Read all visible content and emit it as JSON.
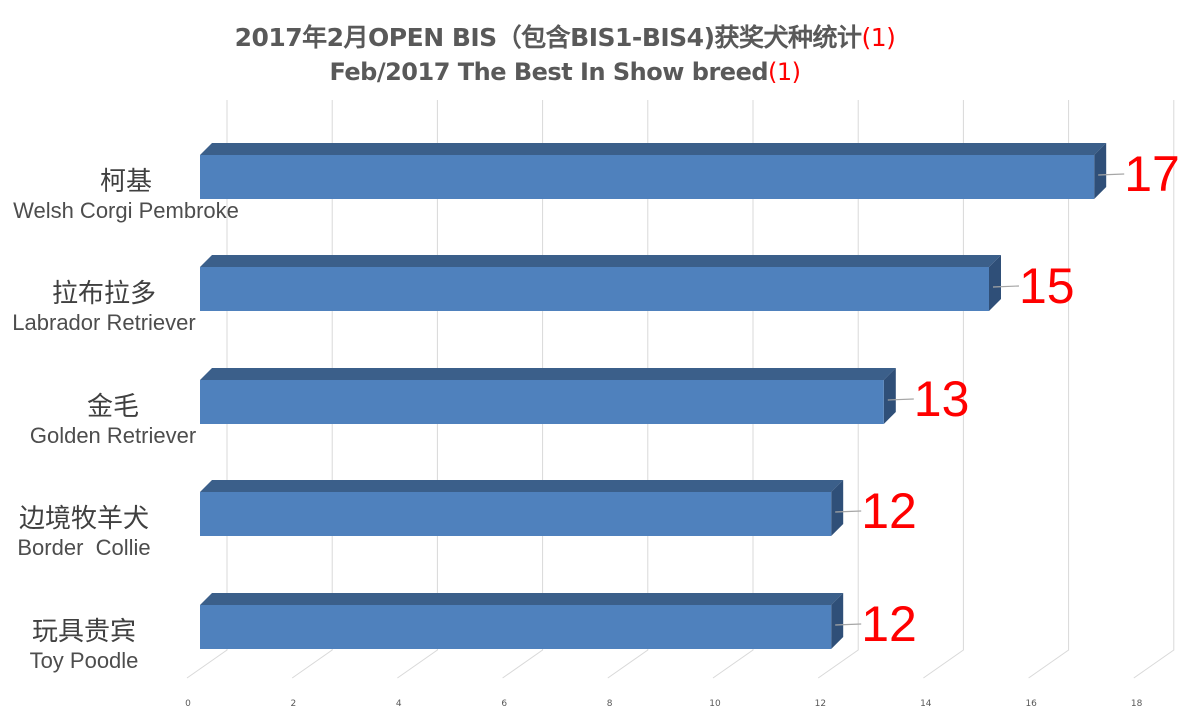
{
  "header": {
    "title_line1": "2017年2月OPEN BIS（包含BIS1-BIS4)获奖犬种统计",
    "title_line1_suffix": "(1)",
    "title_line2": "Feb/2017 The Best In Show breed",
    "title_line2_suffix": "(1)"
  },
  "colors": {
    "bar_front": "#4f81bd",
    "bar_top": "#3b5f8a",
    "bar_side": "#2f4f78",
    "value_label": "#ff0000",
    "gridline": "#d9d9d9",
    "text": "#595959"
  },
  "chart_data": {
    "type": "bar",
    "orientation": "horizontal",
    "style": "3d-clustered-bar",
    "title": "2017年2月OPEN BIS（包含BIS1-BIS4)获奖犬种统计(1) / Feb/2017 The Best In Show breed(1)",
    "categories": [
      {
        "zh": "柯基",
        "en": "Welsh Corgi Pembroke"
      },
      {
        "zh": "拉布拉多",
        "en": "Labrador Retriever"
      },
      {
        "zh": "金毛",
        "en": "Golden Retriever"
      },
      {
        "zh": "边境牧羊犬",
        "en": "Border  Collie"
      },
      {
        "zh": "玩具贵宾",
        "en": "Toy Poodle"
      }
    ],
    "values": [
      17,
      15,
      13,
      12,
      12
    ],
    "xlabel": "",
    "ylabel": "",
    "xlim": [
      0,
      18
    ],
    "x_ticks": [
      "0",
      "2",
      "4",
      "6",
      "8",
      "10",
      "12",
      "14",
      "16",
      "18"
    ],
    "grid": true,
    "legend": false,
    "data_labels": true
  }
}
